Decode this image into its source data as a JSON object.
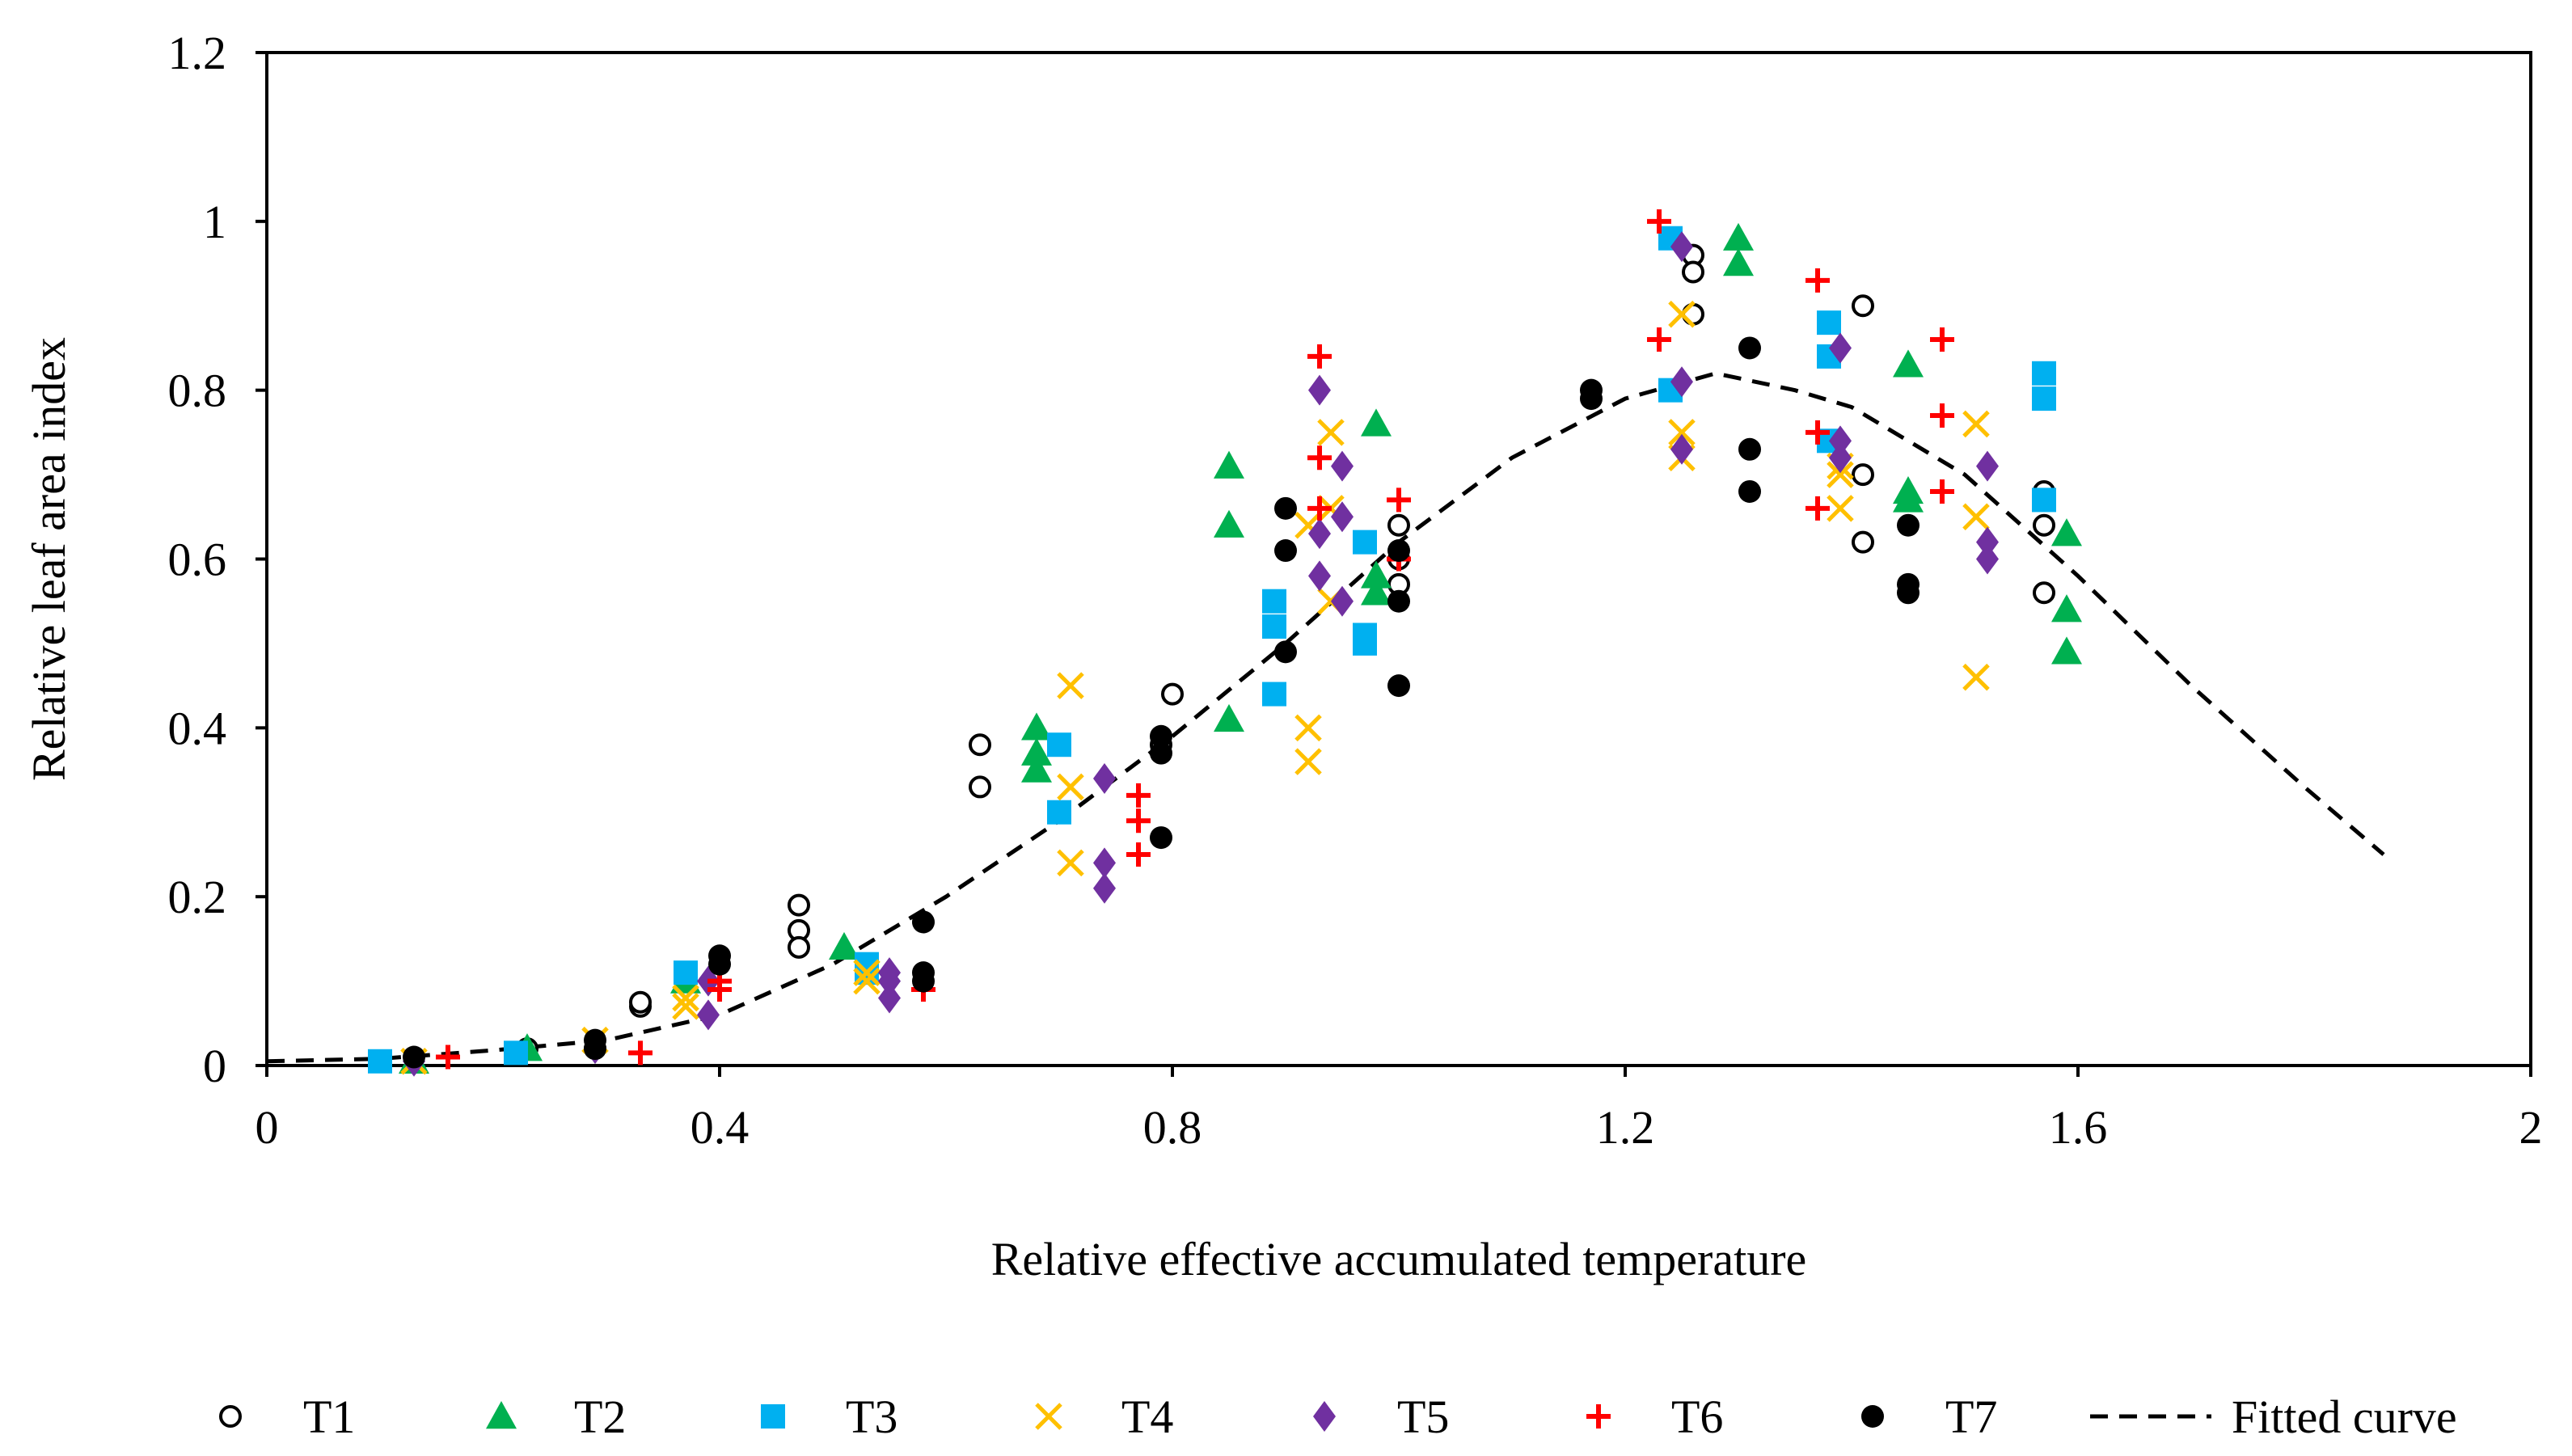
{
  "chart_data": {
    "type": "scatter",
    "title": "",
    "xlabel": "Relative  effective  accumulated  temperature",
    "ylabel": "Relative  leaf area index",
    "xlim": [
      0,
      2
    ],
    "ylim": [
      0,
      1.2
    ],
    "xticks": [
      0,
      0.4,
      0.8,
      1.2,
      1.6,
      2
    ],
    "yticks": [
      0,
      0.2,
      0.4,
      0.6,
      0.8,
      1,
      1.2
    ],
    "xtick_labels": [
      "0",
      "0.4",
      "0.8",
      "1.2",
      "1.6",
      "2"
    ],
    "ytick_labels": [
      "0",
      "0.2",
      "0.4",
      "0.6",
      "0.8",
      "1",
      "1.2"
    ],
    "grid": false,
    "legend_position": "bottom",
    "colors": {
      "T1": "#000000",
      "T2": "#00b050",
      "T3": "#00b0f0",
      "T4": "#ffc000",
      "T5": "#7030a0",
      "T6": "#ff0000",
      "T7": "#000000",
      "fitted": "#000000"
    },
    "series": [
      {
        "name": "T1",
        "marker": "open-circle",
        "points": [
          [
            0.1,
            0.005
          ],
          [
            0.23,
            0.02
          ],
          [
            0.29,
            0.02
          ],
          [
            0.33,
            0.07
          ],
          [
            0.33,
            0.075
          ],
          [
            0.47,
            0.19
          ],
          [
            0.47,
            0.16
          ],
          [
            0.47,
            0.14
          ],
          [
            0.63,
            0.38
          ],
          [
            0.63,
            0.33
          ],
          [
            0.79,
            0.38
          ],
          [
            0.8,
            0.44
          ],
          [
            1.0,
            0.64
          ],
          [
            1.0,
            0.6
          ],
          [
            1.0,
            0.57
          ],
          [
            1.26,
            0.96
          ],
          [
            1.26,
            0.94
          ],
          [
            1.26,
            0.89
          ],
          [
            1.41,
            0.9
          ],
          [
            1.41,
            0.7
          ],
          [
            1.41,
            0.62
          ],
          [
            1.57,
            0.68
          ],
          [
            1.57,
            0.64
          ],
          [
            1.57,
            0.56
          ]
        ]
      },
      {
        "name": "T2",
        "marker": "triangle",
        "points": [
          [
            0.13,
            0.005
          ],
          [
            0.23,
            0.02
          ],
          [
            0.37,
            0.1
          ],
          [
            0.51,
            0.14
          ],
          [
            0.68,
            0.4
          ],
          [
            0.68,
            0.37
          ],
          [
            0.68,
            0.35
          ],
          [
            0.85,
            0.71
          ],
          [
            0.85,
            0.64
          ],
          [
            0.85,
            0.41
          ],
          [
            0.98,
            0.76
          ],
          [
            0.98,
            0.58
          ],
          [
            0.98,
            0.56
          ],
          [
            1.3,
            0.98
          ],
          [
            1.3,
            0.95
          ],
          [
            1.45,
            0.83
          ],
          [
            1.45,
            0.68
          ],
          [
            1.45,
            0.67
          ],
          [
            1.59,
            0.63
          ],
          [
            1.59,
            0.54
          ],
          [
            1.59,
            0.49
          ]
        ]
      },
      {
        "name": "T3",
        "marker": "square",
        "points": [
          [
            0.1,
            0.005
          ],
          [
            0.22,
            0.015
          ],
          [
            0.37,
            0.11
          ],
          [
            0.53,
            0.12
          ],
          [
            0.53,
            0.11
          ],
          [
            0.7,
            0.38
          ],
          [
            0.7,
            0.3
          ],
          [
            0.89,
            0.55
          ],
          [
            0.89,
            0.52
          ],
          [
            0.89,
            0.44
          ],
          [
            0.97,
            0.62
          ],
          [
            0.97,
            0.51
          ],
          [
            0.97,
            0.5
          ],
          [
            1.24,
            0.98
          ],
          [
            1.24,
            0.8
          ],
          [
            1.38,
            0.88
          ],
          [
            1.38,
            0.84
          ],
          [
            1.38,
            0.74
          ],
          [
            1.57,
            0.82
          ],
          [
            1.57,
            0.79
          ],
          [
            1.57,
            0.67
          ]
        ]
      },
      {
        "name": "T4",
        "marker": "x",
        "points": [
          [
            0.13,
            0.005
          ],
          [
            0.29,
            0.03
          ],
          [
            0.37,
            0.08
          ],
          [
            0.37,
            0.07
          ],
          [
            0.53,
            0.11
          ],
          [
            0.53,
            0.1
          ],
          [
            0.71,
            0.45
          ],
          [
            0.71,
            0.33
          ],
          [
            0.71,
            0.24
          ],
          [
            0.92,
            0.64
          ],
          [
            0.92,
            0.4
          ],
          [
            0.92,
            0.36
          ],
          [
            0.94,
            0.75
          ],
          [
            0.94,
            0.66
          ],
          [
            0.94,
            0.55
          ],
          [
            1.25,
            0.89
          ],
          [
            1.25,
            0.75
          ],
          [
            1.25,
            0.72
          ],
          [
            1.39,
            0.71
          ],
          [
            1.39,
            0.7
          ],
          [
            1.39,
            0.66
          ],
          [
            1.51,
            0.76
          ],
          [
            1.51,
            0.65
          ],
          [
            1.51,
            0.46
          ]
        ]
      },
      {
        "name": "T5",
        "marker": "diamond",
        "points": [
          [
            0.13,
            0.005
          ],
          [
            0.29,
            0.02
          ],
          [
            0.39,
            0.1
          ],
          [
            0.39,
            0.06
          ],
          [
            0.55,
            0.11
          ],
          [
            0.55,
            0.1
          ],
          [
            0.55,
            0.08
          ],
          [
            0.74,
            0.34
          ],
          [
            0.74,
            0.24
          ],
          [
            0.74,
            0.21
          ],
          [
            0.93,
            0.8
          ],
          [
            0.93,
            0.63
          ],
          [
            0.93,
            0.58
          ],
          [
            0.95,
            0.71
          ],
          [
            0.95,
            0.65
          ],
          [
            0.95,
            0.55
          ],
          [
            1.25,
            0.97
          ],
          [
            1.25,
            0.81
          ],
          [
            1.25,
            0.73
          ],
          [
            1.39,
            0.85
          ],
          [
            1.39,
            0.74
          ],
          [
            1.39,
            0.72
          ],
          [
            1.52,
            0.71
          ],
          [
            1.52,
            0.62
          ],
          [
            1.52,
            0.6
          ]
        ]
      },
      {
        "name": "T6",
        "marker": "plus",
        "points": [
          [
            0.16,
            0.01
          ],
          [
            0.33,
            0.015
          ],
          [
            0.4,
            0.1
          ],
          [
            0.4,
            0.09
          ],
          [
            0.58,
            0.09
          ],
          [
            0.77,
            0.32
          ],
          [
            0.77,
            0.29
          ],
          [
            0.77,
            0.25
          ],
          [
            0.93,
            0.84
          ],
          [
            0.93,
            0.72
          ],
          [
            0.93,
            0.66
          ],
          [
            1.0,
            0.67
          ],
          [
            1.0,
            0.6
          ],
          [
            1.23,
            1.0
          ],
          [
            1.23,
            0.86
          ],
          [
            1.37,
            0.93
          ],
          [
            1.37,
            0.75
          ],
          [
            1.37,
            0.66
          ],
          [
            1.48,
            0.86
          ],
          [
            1.48,
            0.77
          ],
          [
            1.48,
            0.68
          ]
        ]
      },
      {
        "name": "T7",
        "marker": "filled-circle",
        "points": [
          [
            0.13,
            0.01
          ],
          [
            0.29,
            0.03
          ],
          [
            0.29,
            0.02
          ],
          [
            0.4,
            0.13
          ],
          [
            0.4,
            0.12
          ],
          [
            0.58,
            0.17
          ],
          [
            0.58,
            0.11
          ],
          [
            0.58,
            0.1
          ],
          [
            0.79,
            0.39
          ],
          [
            0.79,
            0.37
          ],
          [
            0.79,
            0.27
          ],
          [
            0.9,
            0.66
          ],
          [
            0.9,
            0.61
          ],
          [
            0.9,
            0.49
          ],
          [
            1.0,
            0.61
          ],
          [
            1.0,
            0.55
          ],
          [
            1.0,
            0.45
          ],
          [
            1.17,
            0.8
          ],
          [
            1.17,
            0.79
          ],
          [
            1.31,
            0.85
          ],
          [
            1.31,
            0.73
          ],
          [
            1.31,
            0.68
          ],
          [
            1.45,
            0.64
          ],
          [
            1.45,
            0.57
          ],
          [
            1.45,
            0.56
          ]
        ]
      },
      {
        "name": "Fitted curve",
        "line": "dashed",
        "points": [
          [
            0,
            0.005
          ],
          [
            0.1,
            0.008
          ],
          [
            0.2,
            0.018
          ],
          [
            0.3,
            0.03
          ],
          [
            0.4,
            0.06
          ],
          [
            0.5,
            0.12
          ],
          [
            0.6,
            0.2
          ],
          [
            0.7,
            0.29
          ],
          [
            0.8,
            0.39
          ],
          [
            0.9,
            0.5
          ],
          [
            1.0,
            0.62
          ],
          [
            1.1,
            0.72
          ],
          [
            1.2,
            0.79
          ],
          [
            1.28,
            0.82
          ],
          [
            1.35,
            0.8
          ],
          [
            1.4,
            0.78
          ],
          [
            1.5,
            0.7
          ],
          [
            1.6,
            0.58
          ],
          [
            1.7,
            0.45
          ],
          [
            1.8,
            0.33
          ],
          [
            1.87,
            0.25
          ]
        ]
      }
    ],
    "legend": [
      "T1",
      "T2",
      "T3",
      "T4",
      "T5",
      "T6",
      "T7",
      "Fitted curve"
    ]
  }
}
